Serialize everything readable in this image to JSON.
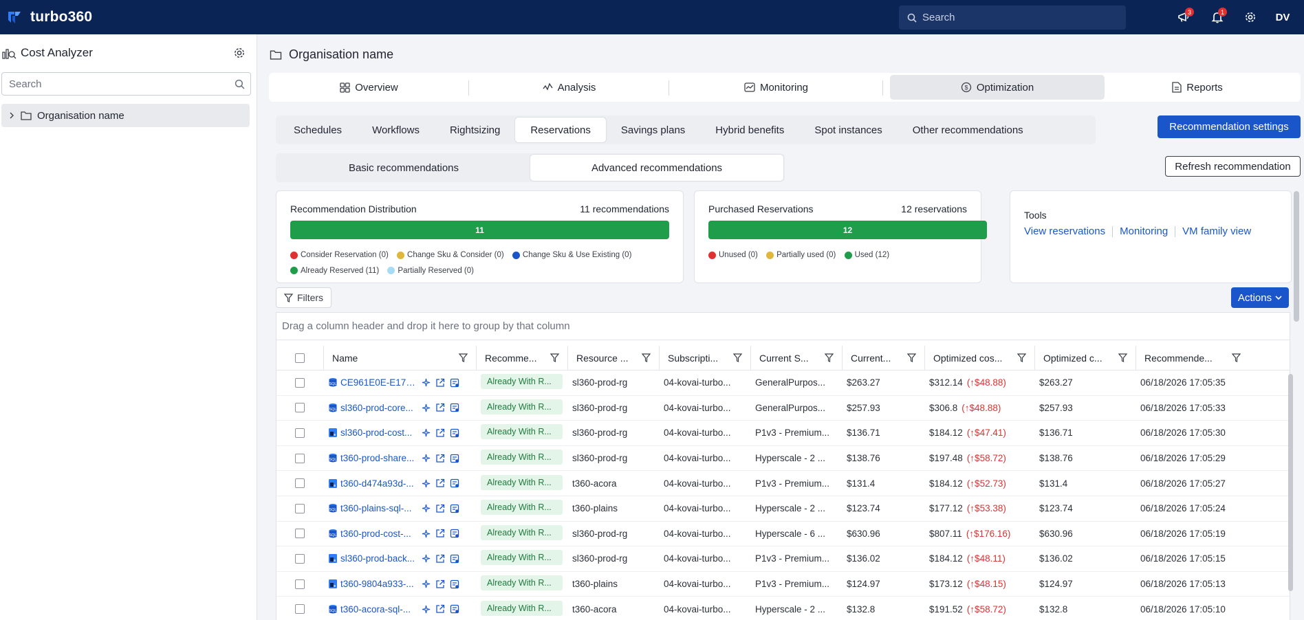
{
  "header": {
    "brand": "turbo360",
    "search_placeholder": "Search",
    "announcements_badge": "3",
    "notifications_badge": "1",
    "avatar_initials": "DV"
  },
  "sidebar": {
    "title": "Cost Analyzer",
    "search_placeholder": "Search",
    "tree": [
      {
        "label": "Organisation name"
      }
    ]
  },
  "main": {
    "org_title": "Organisation name",
    "nav_tabs": [
      {
        "label": "Overview",
        "icon": "grid-icon"
      },
      {
        "label": "Analysis",
        "icon": "analysis-icon"
      },
      {
        "label": "Monitoring",
        "icon": "monitoring-icon"
      },
      {
        "label": "Optimization",
        "icon": "optimization-icon",
        "active": true
      },
      {
        "label": "Reports",
        "icon": "reports-icon"
      }
    ],
    "sub_tabs": [
      "Schedules",
      "Workflows",
      "Rightsizing",
      "Reservations",
      "Savings plans",
      "Hybrid benefits",
      "Spot instances",
      "Other recommendations"
    ],
    "active_sub_tab": "Reservations",
    "recommendation_settings": "Recommendation settings",
    "refresh_recommendation": "Refresh recommendation",
    "rec_tabs": [
      "Basic recommendations",
      "Advanced recommendations"
    ],
    "active_rec_tab": "Advanced recommendations"
  },
  "cards": {
    "distribution": {
      "title": "Recommendation Distribution",
      "count_label": "11 recommendations",
      "bar_value": "11",
      "legend": [
        {
          "label": "Consider Reservation (0)",
          "color": "#e03131"
        },
        {
          "label": "Change Sku & Consider (0)",
          "color": "#e0b73a"
        },
        {
          "label": "Change Sku & Use Existing (0)",
          "color": "#1a56c9"
        },
        {
          "label": "Already Reserved (11)",
          "color": "#1f9d4a"
        },
        {
          "label": "Partially Reserved (0)",
          "color": "#a6dcf5"
        }
      ]
    },
    "purchased": {
      "title": "Purchased Reservations",
      "count_label": "12 reservations",
      "bar_value": "12",
      "legend": [
        {
          "label": "Unused (0)",
          "color": "#e03131"
        },
        {
          "label": "Partially used (0)",
          "color": "#e0b73a"
        },
        {
          "label": "Used (12)",
          "color": "#1f9d4a"
        }
      ]
    },
    "tools": {
      "title": "Tools",
      "links": [
        "View reservations",
        "Monitoring",
        "VM family view"
      ]
    }
  },
  "grid": {
    "filters_label": "Filters",
    "actions_label": "Actions",
    "group_hint": "Drag a column header and drop it here to group by that column",
    "columns": [
      "Name",
      "Recomme...",
      "Resource ...",
      "Subscripti...",
      "Current S...",
      "Current...",
      "Optimized cos...",
      "Optimized c...",
      "Recommende..."
    ],
    "rows": [
      {
        "name": "CE961E0E-E17B-...",
        "icon": "sql-icon",
        "status": "Already With R...",
        "rg": "sl360-prod-rg",
        "sub": "04-kovai-turbo...",
        "sku": "GeneralPurpos...",
        "current": "$263.27",
        "opt_cost": "$312.14",
        "delta": "(↑$48.88)",
        "opt_c": "$263.27",
        "date": "06/18/2026 17:05:35"
      },
      {
        "name": "sl360-prod-core...",
        "icon": "sql-icon",
        "status": "Already With R...",
        "rg": "sl360-prod-rg",
        "sub": "04-kovai-turbo...",
        "sku": "GeneralPurpos...",
        "current": "$257.93",
        "opt_cost": "$306.8",
        "delta": "(↑$48.88)",
        "opt_c": "$257.93",
        "date": "06/18/2026 17:05:33"
      },
      {
        "name": "sl360-prod-cost...",
        "icon": "app-service-icon",
        "status": "Already With R...",
        "rg": "sl360-prod-rg",
        "sub": "04-kovai-turbo...",
        "sku": "P1v3 - Premium...",
        "current": "$136.71",
        "opt_cost": "$184.12",
        "delta": "(↑$47.41)",
        "opt_c": "$136.71",
        "date": "06/18/2026 17:05:30"
      },
      {
        "name": "t360-prod-share...",
        "icon": "sql-icon",
        "status": "Already With R...",
        "rg": "sl360-prod-rg",
        "sub": "04-kovai-turbo...",
        "sku": "Hyperscale - 2 ...",
        "current": "$138.76",
        "opt_cost": "$197.48",
        "delta": "(↑$58.72)",
        "opt_c": "$138.76",
        "date": "06/18/2026 17:05:29"
      },
      {
        "name": "t360-d474a93d-...",
        "icon": "app-service-icon",
        "status": "Already With R...",
        "rg": "t360-acora",
        "sub": "04-kovai-turbo...",
        "sku": "P1v3 - Premium...",
        "current": "$131.4",
        "opt_cost": "$184.12",
        "delta": "(↑$52.73)",
        "opt_c": "$131.4",
        "date": "06/18/2026 17:05:27"
      },
      {
        "name": "t360-plains-sql-...",
        "icon": "sql-icon",
        "status": "Already With R...",
        "rg": "t360-plains",
        "sub": "04-kovai-turbo...",
        "sku": "Hyperscale - 2 ...",
        "current": "$123.74",
        "opt_cost": "$177.12",
        "delta": "(↑$53.38)",
        "opt_c": "$123.74",
        "date": "06/18/2026 17:05:24"
      },
      {
        "name": "t360-prod-cost-...",
        "icon": "sql-icon",
        "status": "Already With R...",
        "rg": "sl360-prod-rg",
        "sub": "04-kovai-turbo...",
        "sku": "Hyperscale - 6 ...",
        "current": "$630.96",
        "opt_cost": "$807.11",
        "delta": "(↑$176.16)",
        "opt_c": "$630.96",
        "date": "06/18/2026 17:05:19"
      },
      {
        "name": "sl360-prod-back...",
        "icon": "app-service-icon",
        "status": "Already With R...",
        "rg": "sl360-prod-rg",
        "sub": "04-kovai-turbo...",
        "sku": "P1v3 - Premium...",
        "current": "$136.02",
        "opt_cost": "$184.12",
        "delta": "(↑$48.11)",
        "opt_c": "$136.02",
        "date": "06/18/2026 17:05:15"
      },
      {
        "name": "t360-9804a933-...",
        "icon": "app-service-icon",
        "status": "Already With R...",
        "rg": "t360-plains",
        "sub": "04-kovai-turbo...",
        "sku": "P1v3 - Premium...",
        "current": "$124.97",
        "opt_cost": "$173.12",
        "delta": "(↑$48.15)",
        "opt_c": "$124.97",
        "date": "06/18/2026 17:05:13"
      },
      {
        "name": "t360-acora-sql-...",
        "icon": "sql-icon",
        "status": "Already With R...",
        "rg": "t360-acora",
        "sub": "04-kovai-turbo...",
        "sku": "Hyperscale - 2 ...",
        "current": "$132.8",
        "opt_cost": "$191.52",
        "delta": "(↑$58.72)",
        "opt_c": "$132.8",
        "date": "06/18/2026 17:05:10"
      }
    ]
  }
}
